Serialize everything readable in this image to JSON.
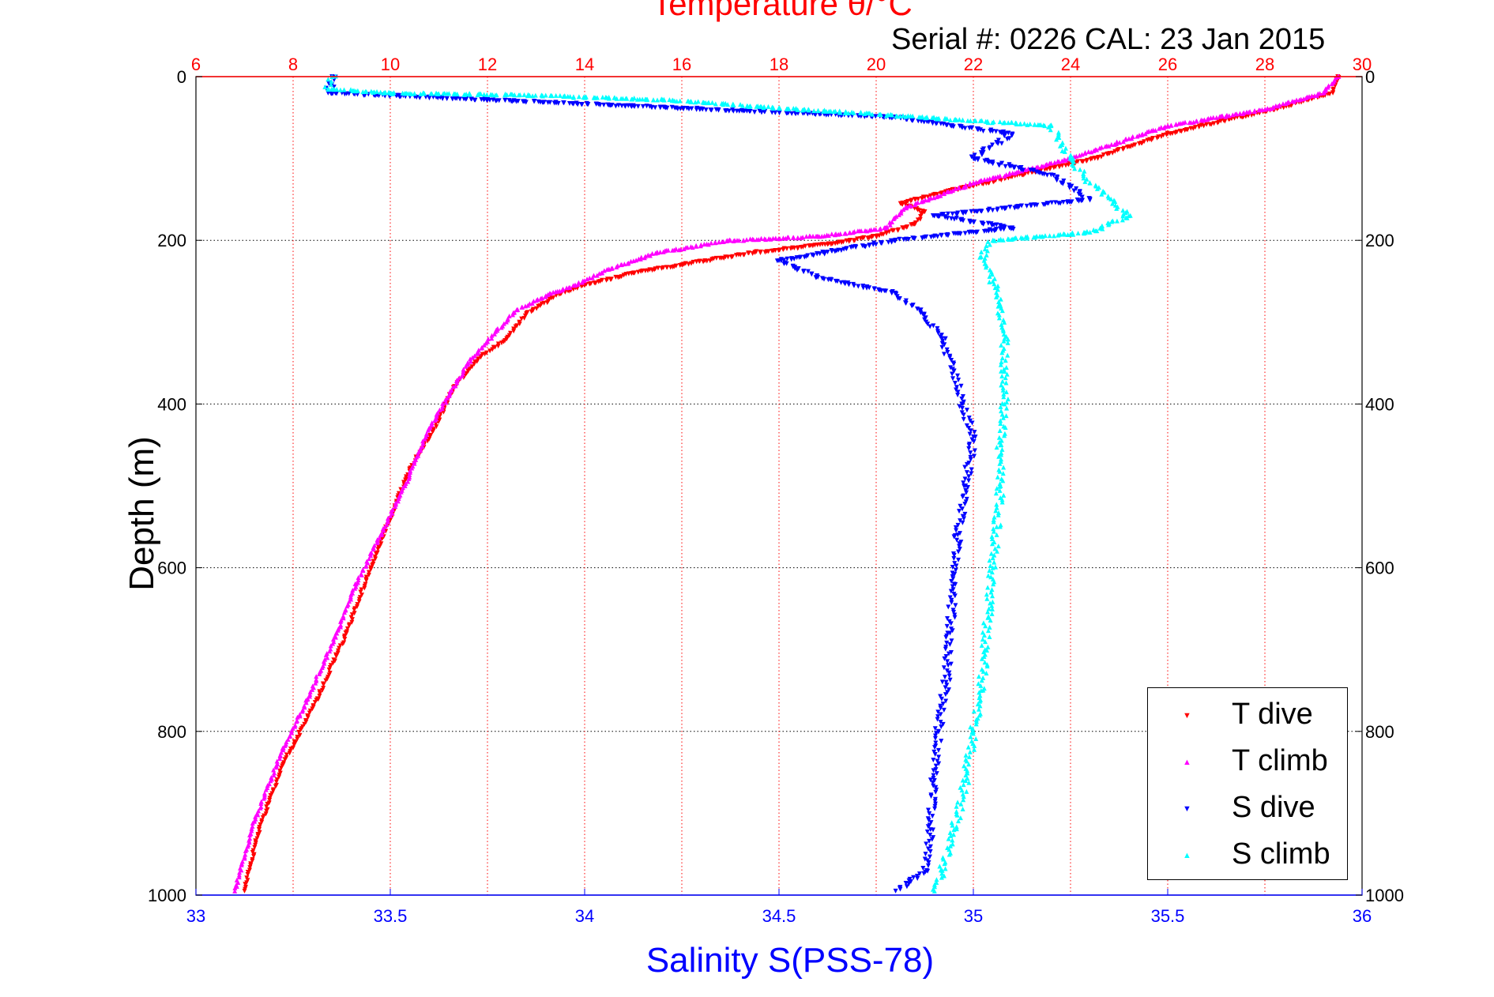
{
  "chart_data": {
    "type": "scatter",
    "title": "Temperature θ/°C",
    "subtitle": "Serial #: 0226  CAL: 23 Jan 2015",
    "ylabel": "Depth (m)",
    "xlabel_bottom": "Salinity S(PSS-78)",
    "y_axis": {
      "range": [
        0,
        1000
      ],
      "reversed": true,
      "ticks": [
        "0",
        "200",
        "400",
        "600",
        "800",
        "1000"
      ]
    },
    "x_bottom_axis": {
      "label": "Salinity S(PSS-78)",
      "range": [
        33,
        36
      ],
      "ticks": [
        "33",
        "33.5",
        "34",
        "34.5",
        "35",
        "35.5",
        "36"
      ]
    },
    "x_top_axis": {
      "label": "Temperature θ/°C",
      "range": [
        6,
        30
      ],
      "ticks": [
        "6",
        "8",
        "10",
        "12",
        "14",
        "16",
        "18",
        "20",
        "22",
        "24",
        "26",
        "28",
        "30"
      ]
    },
    "grid": true,
    "legend_position": "bottom-right",
    "series": [
      {
        "name": "T dive",
        "axis": "temperature",
        "marker": "triangle-down",
        "color": "#ff0000",
        "points": [
          [
            29.5,
            0
          ],
          [
            29.4,
            20
          ],
          [
            28.2,
            40
          ],
          [
            26.0,
            70
          ],
          [
            24.5,
            100
          ],
          [
            23.0,
            120
          ],
          [
            21.5,
            140
          ],
          [
            20.5,
            155
          ],
          [
            21.0,
            165
          ],
          [
            20.8,
            180
          ],
          [
            20.0,
            195
          ],
          [
            19.0,
            205
          ],
          [
            17.5,
            215
          ],
          [
            16.0,
            230
          ],
          [
            15.0,
            240
          ],
          [
            14.0,
            255
          ],
          [
            13.5,
            265
          ],
          [
            12.8,
            290
          ],
          [
            12.4,
            320
          ],
          [
            11.8,
            345
          ],
          [
            11.3,
            380
          ],
          [
            11.0,
            420
          ],
          [
            10.4,
            480
          ],
          [
            10.0,
            540
          ],
          [
            9.6,
            600
          ],
          [
            9.1,
            680
          ],
          [
            8.5,
            760
          ],
          [
            7.8,
            840
          ],
          [
            7.3,
            920
          ],
          [
            7.0,
            995
          ]
        ]
      },
      {
        "name": "T climb",
        "axis": "temperature",
        "marker": "triangle-up",
        "color": "#ff00ff",
        "points": [
          [
            29.5,
            0
          ],
          [
            29.2,
            20
          ],
          [
            28.0,
            40
          ],
          [
            26.0,
            60
          ],
          [
            24.0,
            100
          ],
          [
            22.0,
            130
          ],
          [
            20.6,
            160
          ],
          [
            20.2,
            185
          ],
          [
            18.8,
            195
          ],
          [
            17.0,
            200
          ],
          [
            15.5,
            215
          ],
          [
            14.5,
            235
          ],
          [
            13.8,
            255
          ],
          [
            13.3,
            265
          ],
          [
            12.6,
            285
          ],
          [
            12.2,
            310
          ],
          [
            11.6,
            350
          ],
          [
            11.2,
            390
          ],
          [
            10.8,
            430
          ],
          [
            10.3,
            500
          ],
          [
            9.8,
            560
          ],
          [
            9.3,
            620
          ],
          [
            8.9,
            680
          ],
          [
            8.3,
            760
          ],
          [
            7.8,
            820
          ],
          [
            7.2,
            910
          ],
          [
            6.8,
            995
          ]
        ]
      },
      {
        "name": "S dive",
        "axis": "salinity",
        "marker": "triangle-down",
        "color": "#0000ff",
        "points": [
          [
            33.35,
            0
          ],
          [
            33.35,
            10
          ],
          [
            33.34,
            20
          ],
          [
            34.8,
            50
          ],
          [
            35.1,
            70
          ],
          [
            35.0,
            100
          ],
          [
            35.2,
            120
          ],
          [
            35.3,
            150
          ],
          [
            34.9,
            170
          ],
          [
            35.1,
            185
          ],
          [
            34.8,
            200
          ],
          [
            34.5,
            225
          ],
          [
            34.6,
            245
          ],
          [
            34.8,
            265
          ],
          [
            34.87,
            290
          ],
          [
            34.92,
            320
          ],
          [
            34.95,
            360
          ],
          [
            34.97,
            400
          ],
          [
            35.0,
            440
          ],
          [
            34.98,
            500
          ],
          [
            34.96,
            560
          ],
          [
            34.95,
            620
          ],
          [
            34.94,
            680
          ],
          [
            34.93,
            740
          ],
          [
            34.91,
            800
          ],
          [
            34.9,
            860
          ],
          [
            34.89,
            920
          ],
          [
            34.88,
            970
          ],
          [
            34.8,
            995
          ]
        ]
      },
      {
        "name": "S climb",
        "axis": "salinity",
        "marker": "triangle-up",
        "color": "#00ffff",
        "points": [
          [
            33.35,
            0
          ],
          [
            33.34,
            15
          ],
          [
            33.5,
            20
          ],
          [
            33.8,
            22
          ],
          [
            34.2,
            28
          ],
          [
            34.5,
            38
          ],
          [
            35.2,
            60
          ],
          [
            35.25,
            100
          ],
          [
            35.3,
            130
          ],
          [
            35.4,
            170
          ],
          [
            35.3,
            190
          ],
          [
            35.05,
            200
          ],
          [
            35.02,
            220
          ],
          [
            35.05,
            250
          ],
          [
            35.07,
            280
          ],
          [
            35.08,
            320
          ],
          [
            35.08,
            360
          ],
          [
            35.08,
            400
          ],
          [
            35.07,
            450
          ],
          [
            35.07,
            500
          ],
          [
            35.06,
            550
          ],
          [
            35.05,
            600
          ],
          [
            35.04,
            650
          ],
          [
            35.03,
            700
          ],
          [
            35.02,
            750
          ],
          [
            35.0,
            800
          ],
          [
            34.98,
            860
          ],
          [
            34.95,
            920
          ],
          [
            34.92,
            970
          ],
          [
            34.9,
            995
          ]
        ]
      }
    ]
  },
  "legend": {
    "items": [
      {
        "label": "T dive",
        "marker": "▼",
        "color": "#ff0000"
      },
      {
        "label": "T climb",
        "marker": "▲",
        "color": "#ff00ff"
      },
      {
        "label": "S dive",
        "marker": "▼",
        "color": "#0000ff"
      },
      {
        "label": "S climb",
        "marker": "▲",
        "color": "#00ffff"
      }
    ]
  }
}
